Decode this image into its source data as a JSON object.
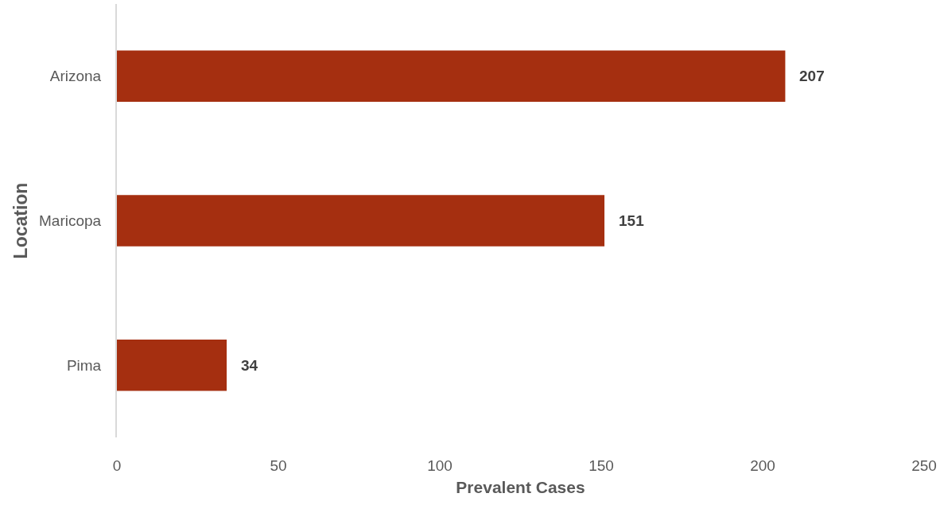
{
  "chart_data": {
    "type": "bar",
    "orientation": "horizontal",
    "xlabel": "Prevalent Cases",
    "ylabel": "Location",
    "categories": [
      "Arizona",
      "Maricopa",
      "Pima"
    ],
    "values": [
      207,
      151,
      34
    ],
    "color": "#a52f10",
    "xlim": [
      0,
      250
    ],
    "xticks": [
      0,
      50,
      100,
      150,
      200,
      250
    ],
    "data_labels": true
  }
}
